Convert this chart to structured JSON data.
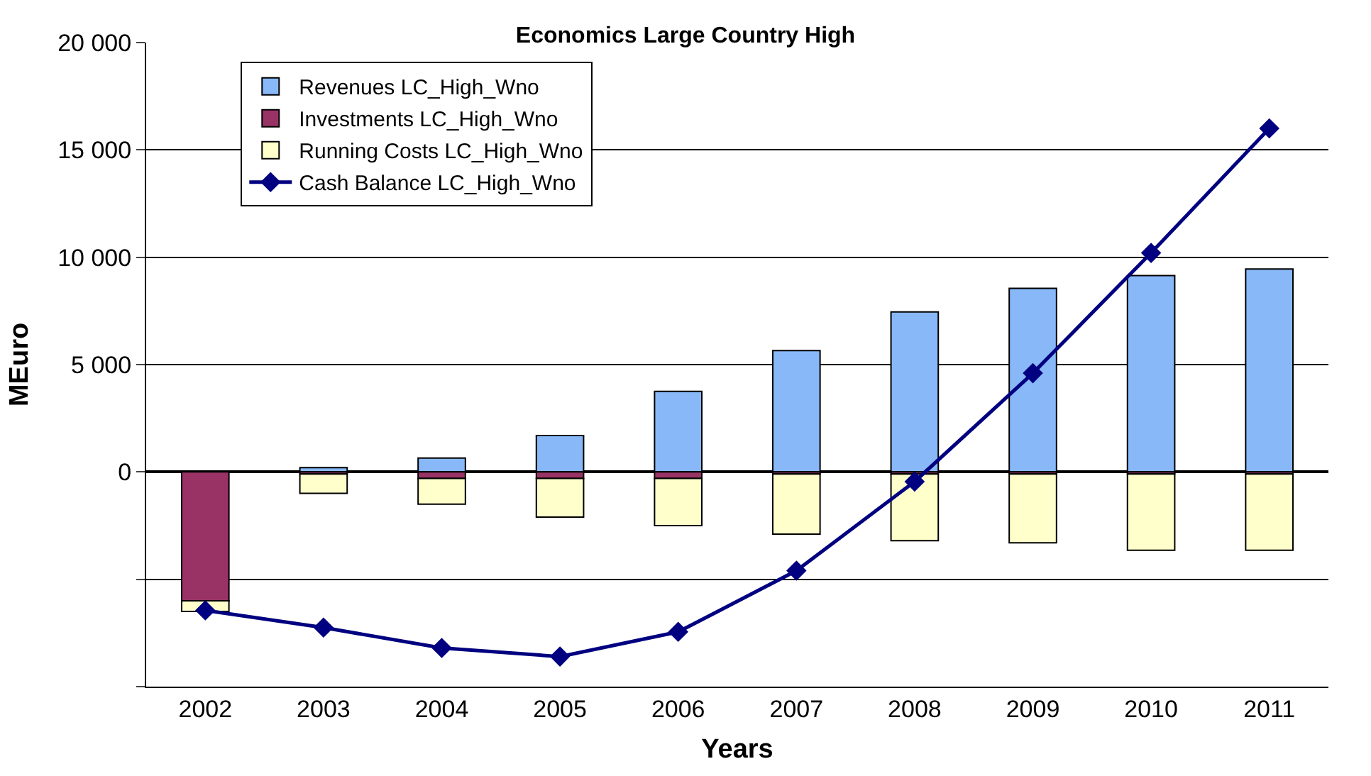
{
  "chart_data": {
    "type": "bar",
    "title": "Economics Large Country High",
    "xlabel": "Years",
    "ylabel": "MEuro",
    "categories": [
      "2002",
      "2003",
      "2004",
      "2005",
      "2006",
      "2007",
      "2008",
      "2009",
      "2010",
      "2011"
    ],
    "stacked": true,
    "series": [
      {
        "name": "Revenues LC_High_Wno",
        "color": "#88b8f8",
        "values": [
          null,
          200,
          650,
          1700,
          3750,
          5650,
          7450,
          8550,
          9150,
          9450
        ]
      },
      {
        "name": "Investments LC_High_Wno",
        "color": "#993366",
        "values": [
          -6000,
          -100,
          -300,
          -300,
          -300,
          -100,
          -100,
          -100,
          -100,
          -100
        ]
      },
      {
        "name": "Running Costs LC_High_Wno",
        "color": "#ffffcc",
        "values": [
          -500,
          -900,
          -1200,
          -1800,
          -2200,
          -2800,
          -3100,
          -3200,
          -3550,
          -3550
        ]
      },
      {
        "name": "Cash Balance LC_High_Wno",
        "type": "line",
        "color": "#000080",
        "marker": "diamond",
        "values": [
          -6450,
          -7250,
          -8200,
          -8600,
          -7450,
          -4600,
          -450,
          4600,
          10200,
          16000
        ]
      }
    ],
    "ylim": [
      -10000,
      20000
    ],
    "yticks": [
      {
        "value": -10000,
        "label": null
      },
      {
        "value": -5000,
        "label": null
      },
      {
        "value": 0,
        "label": "0"
      },
      {
        "value": 5000,
        "label": "5 000"
      },
      {
        "value": 10000,
        "label": "10 000"
      },
      {
        "value": 15000,
        "label": "15 000"
      },
      {
        "value": 20000,
        "label": "20 000"
      }
    ],
    "grid": "y",
    "legend": "top left"
  }
}
